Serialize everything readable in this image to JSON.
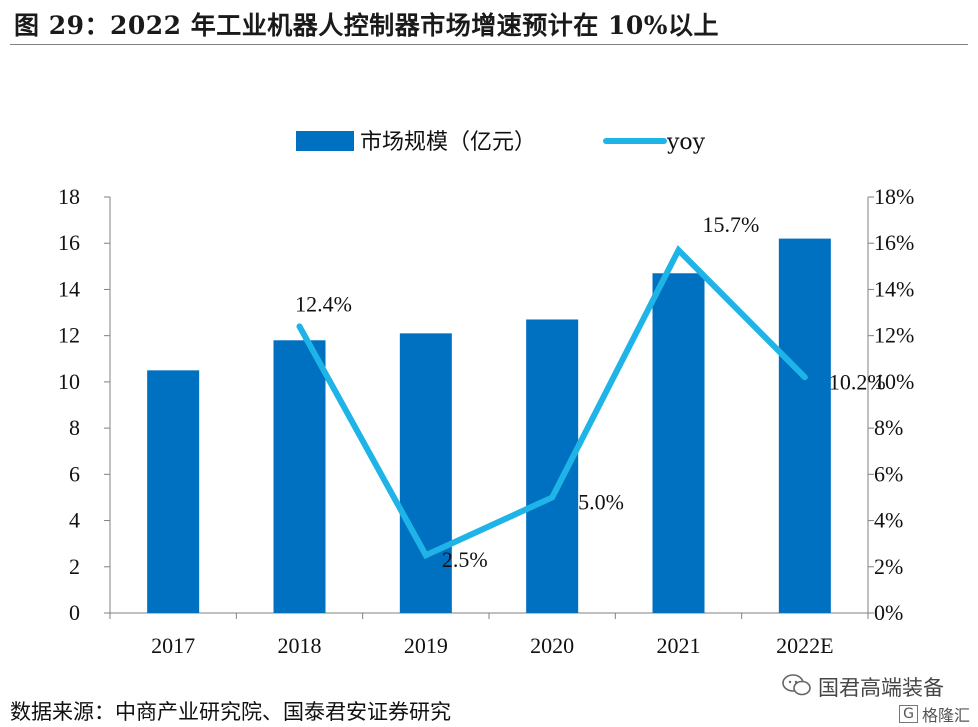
{
  "title": "图 29：2022 年工业机器人控制器市场增速预计在 10%以上",
  "source": "数据来源：中商产业研究院、国泰君安证券研究",
  "watermark": {
    "text": "国君高端装备",
    "icon": "wechat-icon"
  },
  "badge": {
    "letter": "G",
    "text": "格隆汇"
  },
  "colors": {
    "bar": "#0070c0",
    "line": "#1fb4e8",
    "axis": "#808080"
  },
  "chart_data": {
    "type": "bar",
    "categories": [
      "2017",
      "2018",
      "2019",
      "2020",
      "2021",
      "2022E"
    ],
    "series": [
      {
        "name": "市场规模（亿元）",
        "type": "bar",
        "axis": "left",
        "values": [
          10.5,
          11.8,
          12.1,
          12.7,
          14.7,
          16.2
        ]
      },
      {
        "name": "yoy",
        "type": "line",
        "axis": "right",
        "values": [
          null,
          12.4,
          2.5,
          5.0,
          15.7,
          10.2
        ],
        "labels": [
          "",
          "12.4%",
          "2.5%",
          "5.0%",
          "15.7%",
          "10.2%"
        ]
      }
    ],
    "ylim": [
      0,
      18
    ],
    "yticks": [
      "0",
      "2",
      "4",
      "6",
      "8",
      "10",
      "12",
      "14",
      "16",
      "18"
    ],
    "y2lim": [
      0,
      18
    ],
    "y2ticks": [
      "0%",
      "2%",
      "4%",
      "6%",
      "8%",
      "10%",
      "12%",
      "14%",
      "16%",
      "18%"
    ],
    "legend": "top-center"
  }
}
